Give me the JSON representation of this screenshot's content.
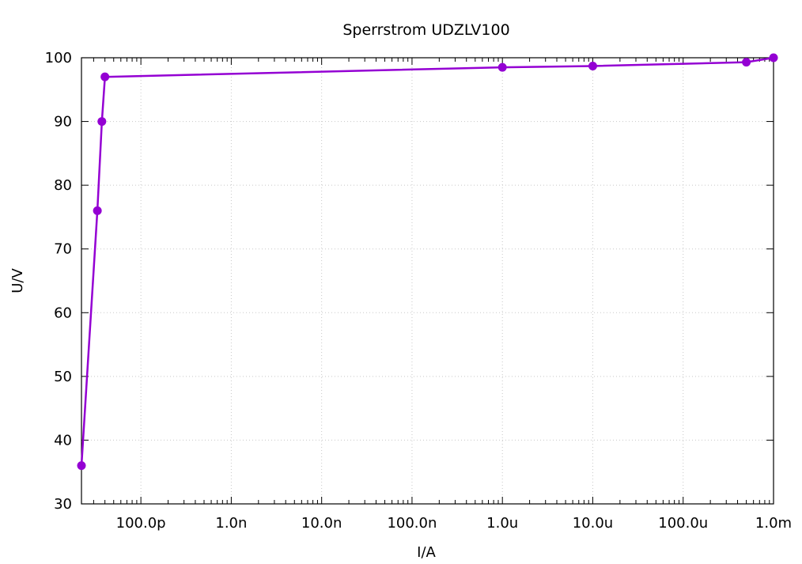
{
  "chart_data": {
    "type": "line",
    "title": "Sperrstrom UDZLV100",
    "xlabel": "I/A",
    "ylabel": "U/V",
    "xscale": "log",
    "xlim": [
      2.2e-11,
      0.001
    ],
    "ylim": [
      30,
      100
    ],
    "grid": true,
    "x_ticks": [
      {
        "value": 1e-10,
        "label": "100.0p"
      },
      {
        "value": 1e-09,
        "label": "1.0n"
      },
      {
        "value": 1e-08,
        "label": "10.0n"
      },
      {
        "value": 1e-07,
        "label": "100.0n"
      },
      {
        "value": 1e-06,
        "label": "1.0u"
      },
      {
        "value": 1e-05,
        "label": "10.0u"
      },
      {
        "value": 0.0001,
        "label": "100.0u"
      },
      {
        "value": 0.001,
        "label": "1.0m"
      }
    ],
    "y_ticks": [
      {
        "value": 30,
        "label": "30"
      },
      {
        "value": 40,
        "label": "40"
      },
      {
        "value": 50,
        "label": "50"
      },
      {
        "value": 60,
        "label": "60"
      },
      {
        "value": 70,
        "label": "70"
      },
      {
        "value": 80,
        "label": "80"
      },
      {
        "value": 90,
        "label": "90"
      },
      {
        "value": 100,
        "label": "100"
      }
    ],
    "series": [
      {
        "color": "#9400d3",
        "points": [
          {
            "x": 2.2e-11,
            "y": 36
          },
          {
            "x": 3.3e-11,
            "y": 76
          },
          {
            "x": 3.7e-11,
            "y": 90
          },
          {
            "x": 4e-11,
            "y": 97
          },
          {
            "x": 1e-06,
            "y": 98.5
          },
          {
            "x": 1e-05,
            "y": 98.7
          },
          {
            "x": 0.0005,
            "y": 99.3
          },
          {
            "x": 0.001,
            "y": 100
          }
        ]
      }
    ]
  }
}
